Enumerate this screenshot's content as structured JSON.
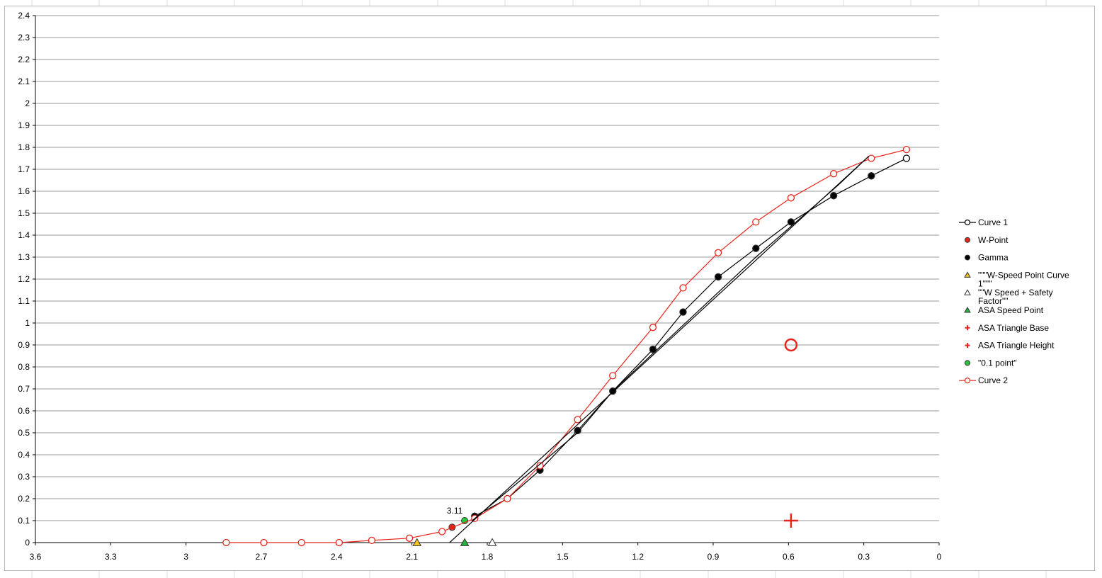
{
  "chart_data": {
    "type": "scatter",
    "title": "",
    "xlabel": "",
    "ylabel": "",
    "x_reversed": true,
    "xlim": [
      0,
      3.6
    ],
    "ylim": [
      0,
      2.4
    ],
    "grid": true,
    "legend_position": "right",
    "x_ticks": [
      "3.6",
      "3.3",
      "3",
      "2.7",
      "2.4",
      "2.1",
      "1.8",
      "1.5",
      "1.2",
      "0.9",
      "0.6",
      "0.3",
      "0"
    ],
    "y_ticks": [
      "2.4",
      "2.3",
      "2.2",
      "2.1",
      "2",
      "1.9",
      "1.8",
      "1.7",
      "1.6",
      "1.5",
      "1.4",
      "1.3",
      "1.2",
      "1.1",
      "1",
      "0.9",
      "0.8",
      "0.7",
      "0.6",
      "0.5",
      "0.4",
      "0.3",
      "0.2",
      "0.1",
      "0"
    ],
    "series": [
      {
        "name": "Curve 1",
        "kind": "line-open-circle",
        "color": "#000000",
        "points": [
          [
            1.85,
            0.12
          ],
          [
            1.72,
            0.2
          ],
          [
            1.59,
            0.33
          ],
          [
            1.44,
            0.51
          ],
          [
            1.3,
            0.69
          ],
          [
            1.14,
            0.88
          ],
          [
            1.02,
            1.05
          ],
          [
            0.88,
            1.21
          ],
          [
            0.73,
            1.34
          ],
          [
            0.59,
            1.46
          ],
          [
            0.42,
            1.58
          ],
          [
            0.27,
            1.67
          ],
          [
            0.13,
            1.75
          ]
        ]
      },
      {
        "name": "W-Point",
        "kind": "marker-circle",
        "color": "#e8251b",
        "points": [
          [
            1.94,
            0.07
          ]
        ]
      },
      {
        "name": "Gamma",
        "kind": "marker-circle",
        "color": "#000000",
        "points": [
          [
            1.85,
            0.12
          ],
          [
            1.72,
            0.2
          ],
          [
            1.59,
            0.33
          ],
          [
            1.44,
            0.51
          ],
          [
            1.3,
            0.69
          ],
          [
            1.14,
            0.88
          ],
          [
            1.02,
            1.05
          ],
          [
            0.88,
            1.21
          ],
          [
            0.73,
            1.34
          ],
          [
            0.59,
            1.46
          ],
          [
            0.42,
            1.58
          ],
          [
            0.27,
            1.67
          ]
        ]
      },
      {
        "name": "\"\"\"W-Speed Point Curve 1\"\"\"",
        "kind": "marker-triangle",
        "color": "#f5c518",
        "points": [
          [
            2.08,
            0.0
          ]
        ]
      },
      {
        "name": "\"\"W Speed + Safety Factor\"\"",
        "kind": "marker-triangle",
        "color": "#ffffff",
        "points": [
          [
            1.78,
            0.0
          ]
        ]
      },
      {
        "name": "ASA Speed Point",
        "kind": "marker-triangle",
        "color": "#22b53a",
        "points": [
          [
            1.89,
            0.0
          ]
        ]
      },
      {
        "name": "ASA Triangle Base",
        "kind": "marker-plus",
        "color": "#e8251b",
        "points": [
          [
            0.59,
            0.1
          ]
        ]
      },
      {
        "name": "ASA Triangle Height",
        "kind": "marker-big-circle",
        "color": "#e8251b",
        "points": [
          [
            0.59,
            0.9
          ]
        ]
      },
      {
        "name": "\"0.1 point\"",
        "kind": "marker-circle",
        "color": "#22c93a",
        "points": [
          [
            1.89,
            0.1
          ]
        ]
      },
      {
        "name": "Curve 2",
        "kind": "line-open-circle",
        "color": "#e8251b",
        "points": [
          [
            2.84,
            0.0
          ],
          [
            2.69,
            0.0
          ],
          [
            2.54,
            0.0
          ],
          [
            2.39,
            0.0
          ],
          [
            2.26,
            0.01
          ],
          [
            2.11,
            0.02
          ],
          [
            1.98,
            0.05
          ],
          [
            1.85,
            0.11
          ],
          [
            1.72,
            0.2
          ],
          [
            1.59,
            0.35
          ],
          [
            1.44,
            0.56
          ],
          [
            1.3,
            0.76
          ],
          [
            1.14,
            0.98
          ],
          [
            1.02,
            1.16
          ],
          [
            0.88,
            1.32
          ],
          [
            0.73,
            1.46
          ],
          [
            0.59,
            1.57
          ],
          [
            0.42,
            1.68
          ],
          [
            0.27,
            1.75
          ],
          [
            0.13,
            1.79
          ]
        ]
      },
      {
        "name": "",
        "kind": "line-plain",
        "color": "#000000",
        "points": [
          [
            1.95,
            0.0
          ],
          [
            0.28,
            1.76
          ]
        ]
      },
      {
        "name": "",
        "kind": "line-plain",
        "color": "#000000",
        "points": [
          [
            1.86,
            0.1
          ],
          [
            1.44,
            0.5
          ],
          [
            1.3,
            0.69
          ],
          [
            0.73,
            1.3
          ],
          [
            0.4,
            1.63
          ],
          [
            0.28,
            1.76
          ]
        ]
      }
    ],
    "annotations": [
      {
        "text": "3.11",
        "x": 1.89,
        "y": 0.1
      }
    ]
  }
}
